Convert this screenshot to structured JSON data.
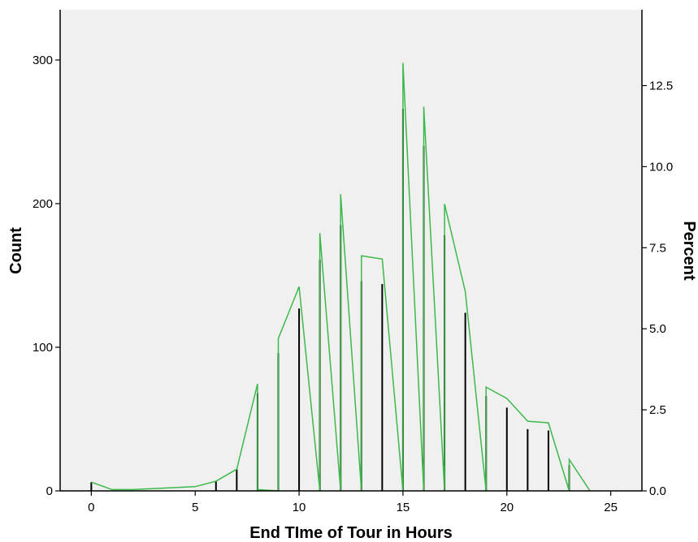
{
  "chart_data": {
    "type": "bar",
    "title": "",
    "xlabel": "End TIme of Tour in Hours",
    "ylabel": "Count",
    "y2label": "Percent",
    "xlim": [
      -1.5,
      26.5
    ],
    "ylim": [
      0,
      335
    ],
    "y2lim": [
      0,
      14.84
    ],
    "xticks": [
      0,
      5,
      10,
      15,
      20,
      25
    ],
    "yticks": [
      0,
      100,
      200,
      300
    ],
    "y2ticks": [
      0.0,
      2.5,
      5.0,
      7.5,
      10.0,
      12.5
    ],
    "y2tick_labels": [
      "0.0",
      "2.5",
      "5.0",
      "7.5",
      "10.0",
      "12.5"
    ],
    "grid": false,
    "legend": "none",
    "background_color": "#f0f0f0",
    "bars": {
      "name": "Count",
      "color": "#000000",
      "x": [
        0,
        6,
        7,
        8,
        9,
        10,
        11,
        12,
        13,
        14,
        15,
        16,
        17,
        18,
        19,
        20,
        21,
        22,
        23
      ],
      "values": [
        6,
        7,
        15,
        68,
        96,
        127,
        161,
        185,
        146,
        144,
        266,
        240,
        178,
        124,
        66,
        58,
        43,
        42,
        18
      ]
    },
    "line": {
      "name": "Percent",
      "color": "#3cb94a",
      "x": [
        0,
        1,
        2,
        5,
        6,
        7,
        8,
        8,
        9,
        9,
        10,
        11,
        11,
        12,
        12,
        13,
        13,
        14,
        15,
        15,
        16,
        16,
        17,
        17,
        18,
        19,
        19,
        20,
        21,
        22,
        23,
        23,
        24
      ],
      "values": [
        0.27,
        0.04,
        0.04,
        0.13,
        0.3,
        0.67,
        3.3,
        0.04,
        0.0,
        4.7,
        6.3,
        0.0,
        7.95,
        0.0,
        9.15,
        0.0,
        7.25,
        7.15,
        0.0,
        13.2,
        0.0,
        11.85,
        0.0,
        8.85,
        6.15,
        0.0,
        3.2,
        2.85,
        2.15,
        2.1,
        0.0,
        0.97,
        0.0
      ]
    }
  }
}
